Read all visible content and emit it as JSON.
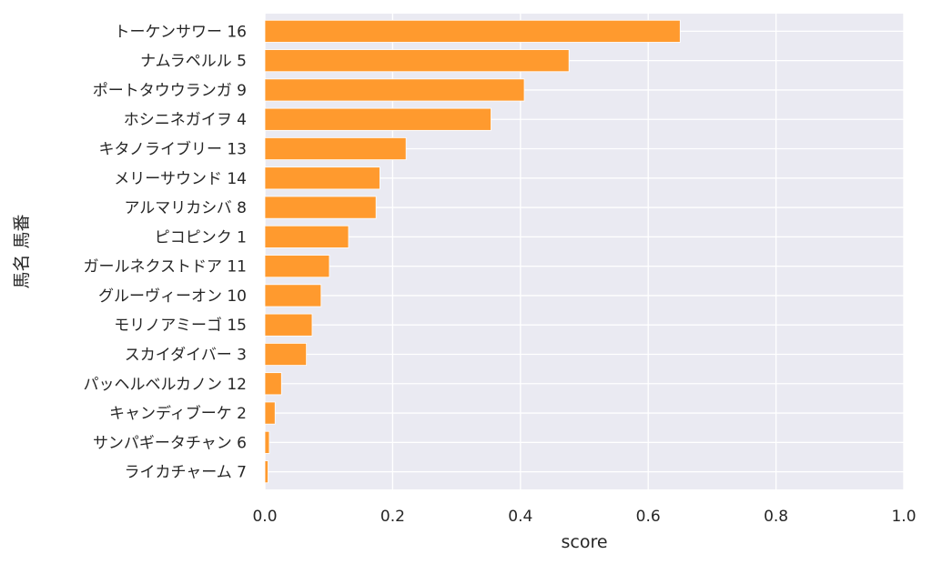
{
  "chart_data": {
    "type": "bar",
    "orientation": "horizontal",
    "categories": [
      "トーケンサワー 16",
      "ナムラペルル 5",
      "ポートタウウランガ 9",
      "ホシニネガイヲ 4",
      "キタノライブリー 13",
      "メリーサウンド 14",
      "アルマリカシバ 8",
      "ピコピンク 1",
      "ガールネクストドア 11",
      "グルーヴィーオン 10",
      "モリノアミーゴ 15",
      "スカイダイバー 3",
      "パッヘルベルカノン 12",
      "キャンディブーケ 2",
      "サンパギータチャン 6",
      "ライカチャーム 7"
    ],
    "values": [
      0.65,
      0.476,
      0.406,
      0.354,
      0.221,
      0.18,
      0.174,
      0.131,
      0.101,
      0.088,
      0.074,
      0.065,
      0.026,
      0.016,
      0.007,
      0.005
    ],
    "xlabel": "score",
    "ylabel": "馬名 馬番",
    "xlim": [
      0,
      1.0
    ],
    "xticks": [
      "0.0",
      "0.2",
      "0.4",
      "0.6",
      "0.8",
      "1.0"
    ],
    "xtick_values": [
      0,
      0.2,
      0.4,
      0.6,
      0.8,
      1.0
    ],
    "grid": true,
    "colors": {
      "bar": "#ff9a2e",
      "plot_background": "#eaeaf2",
      "grid": "#ffffff"
    }
  }
}
